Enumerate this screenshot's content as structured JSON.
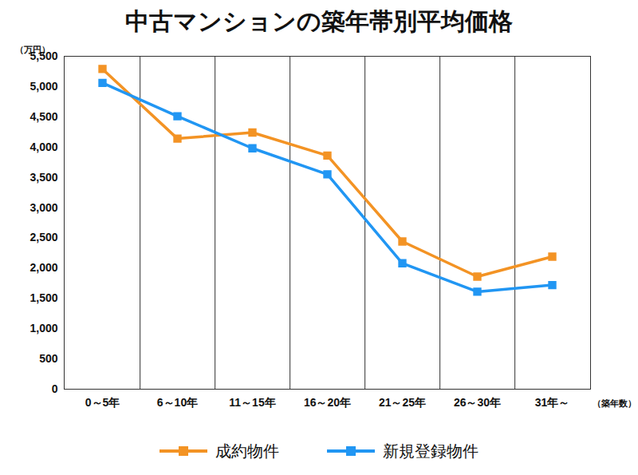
{
  "chart_data": {
    "type": "line",
    "title": "中古マンションの築年帯別平均価格",
    "ylabel": "（万円）",
    "xlabel": "（築年数）",
    "categories": [
      "0～5年",
      "6～10年",
      "11～15年",
      "16～20年",
      "21～25年",
      "26～30年",
      "31年～"
    ],
    "series": [
      {
        "name": "成約物件",
        "color": "#f39324",
        "marker": "square",
        "values": [
          5290,
          4140,
          4240,
          3860,
          2440,
          1860,
          2190
        ]
      },
      {
        "name": "新規登録物件",
        "color": "#2196f3",
        "marker": "square",
        "values": [
          5060,
          4510,
          3980,
          3550,
          2080,
          1610,
          1720
        ]
      }
    ],
    "ylim": [
      0,
      5500
    ],
    "yticks": [
      0,
      500,
      {
        "value": 1000,
        "label": "1,000"
      },
      {
        "value": 1500,
        "label": "1,500"
      },
      {
        "value": 2000,
        "label": "2,000"
      },
      {
        "value": 2500,
        "label": "2,500"
      },
      {
        "value": 3000,
        "label": "3,000"
      },
      {
        "value": 3500,
        "label": "3,500"
      },
      {
        "value": 4000,
        "label": "4,000"
      },
      {
        "value": 4500,
        "label": "4,500"
      },
      {
        "value": 5000,
        "label": "5,000"
      },
      {
        "value": 5500,
        "label": "5,500"
      }
    ],
    "grid": true,
    "legend": "bottom"
  }
}
